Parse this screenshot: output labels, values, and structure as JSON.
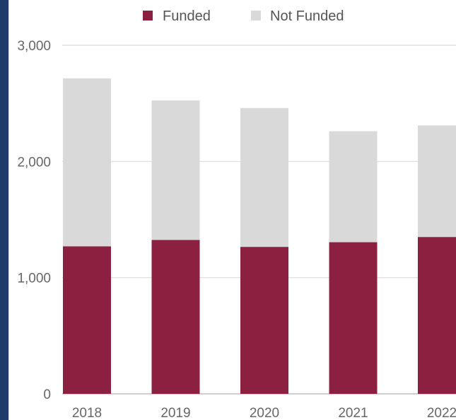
{
  "chart_data": {
    "type": "bar",
    "stacked": true,
    "categories": [
      "2018",
      "2019",
      "2020",
      "2021",
      "2022"
    ],
    "series": [
      {
        "name": "Funded",
        "values": [
          1270,
          1325,
          1265,
          1305,
          1350
        ],
        "color": "#8b2040"
      },
      {
        "name": "Not Funded",
        "values": [
          1445,
          1200,
          1195,
          955,
          960
        ],
        "color": "#d9d9d9"
      }
    ],
    "ylim": [
      0,
      3000
    ],
    "yticks": [
      0,
      1000,
      2000,
      3000
    ],
    "ytick_labels": [
      "0",
      "1,000",
      "2,000",
      "3,000"
    ],
    "legend_position": "top",
    "grid": true
  }
}
